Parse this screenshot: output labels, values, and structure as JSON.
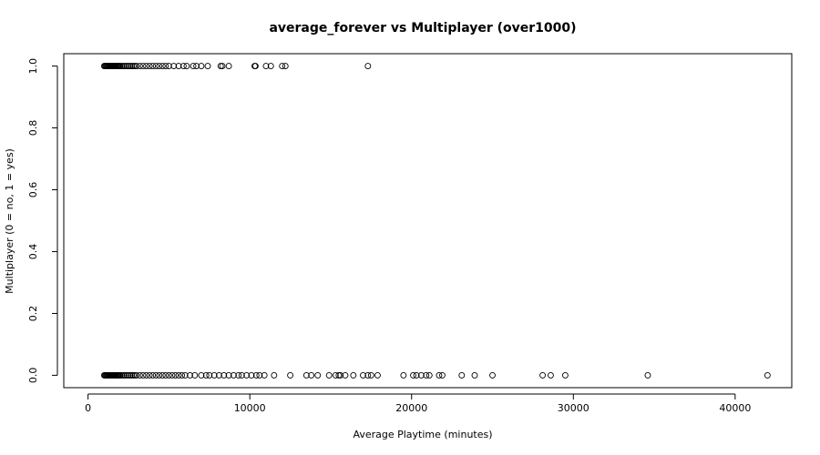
{
  "chart_data": {
    "type": "scatter",
    "title": "average_forever vs Multiplayer (over1000)",
    "xlabel": "Average Playtime (minutes)",
    "ylabel": "Multiplayer (0 = no, 1 = yes)",
    "xlim": [
      -1500,
      43500
    ],
    "ylim": [
      -0.04,
      1.04
    ],
    "x_ticks": [
      0,
      10000,
      20000,
      30000,
      40000
    ],
    "x_tick_labels": [
      "0",
      "10000",
      "20000",
      "30000",
      "40000"
    ],
    "y_ticks": [
      0.0,
      0.2,
      0.4,
      0.6,
      0.8,
      1.0
    ],
    "y_tick_labels": [
      "0.0",
      "0.2",
      "0.4",
      "0.6",
      "0.8",
      "1.0"
    ],
    "grid": false,
    "marker": "open-circle",
    "series": [
      {
        "points": [
          [
            1000,
            1
          ],
          [
            1050,
            1
          ],
          [
            1100,
            1
          ],
          [
            1150,
            1
          ],
          [
            1200,
            1
          ],
          [
            1250,
            1
          ],
          [
            1300,
            1
          ],
          [
            1350,
            1
          ],
          [
            1400,
            1
          ],
          [
            1450,
            1
          ],
          [
            1500,
            1
          ],
          [
            1550,
            1
          ],
          [
            1600,
            1
          ],
          [
            1650,
            1
          ],
          [
            1700,
            1
          ],
          [
            1750,
            1
          ],
          [
            1800,
            1
          ],
          [
            1850,
            1
          ],
          [
            1900,
            1
          ],
          [
            1950,
            1
          ],
          [
            2000,
            1
          ],
          [
            2100,
            1
          ],
          [
            2200,
            1
          ],
          [
            2300,
            1
          ],
          [
            2400,
            1
          ],
          [
            2500,
            1
          ],
          [
            2600,
            1
          ],
          [
            2700,
            1
          ],
          [
            2800,
            1
          ],
          [
            2900,
            1
          ],
          [
            3000,
            1
          ],
          [
            3200,
            1
          ],
          [
            3400,
            1
          ],
          [
            3600,
            1
          ],
          [
            3800,
            1
          ],
          [
            4000,
            1
          ],
          [
            4200,
            1
          ],
          [
            4400,
            1
          ],
          [
            4600,
            1
          ],
          [
            4800,
            1
          ],
          [
            5000,
            1
          ],
          [
            5300,
            1
          ],
          [
            5600,
            1
          ],
          [
            5900,
            1
          ],
          [
            6100,
            1
          ],
          [
            6500,
            1
          ],
          [
            6700,
            1
          ],
          [
            7000,
            1
          ],
          [
            7400,
            1
          ],
          [
            8200,
            1
          ],
          [
            8300,
            1
          ],
          [
            8700,
            1
          ],
          [
            10300,
            1
          ],
          [
            10350,
            1
          ],
          [
            11000,
            1
          ],
          [
            11300,
            1
          ],
          [
            12000,
            1
          ],
          [
            12200,
            1
          ],
          [
            17300,
            1
          ],
          [
            1000,
            0
          ],
          [
            1050,
            0
          ],
          [
            1100,
            0
          ],
          [
            1150,
            0
          ],
          [
            1200,
            0
          ],
          [
            1250,
            0
          ],
          [
            1300,
            0
          ],
          [
            1350,
            0
          ],
          [
            1400,
            0
          ],
          [
            1450,
            0
          ],
          [
            1500,
            0
          ],
          [
            1550,
            0
          ],
          [
            1600,
            0
          ],
          [
            1650,
            0
          ],
          [
            1700,
            0
          ],
          [
            1750,
            0
          ],
          [
            1800,
            0
          ],
          [
            1850,
            0
          ],
          [
            1900,
            0
          ],
          [
            1950,
            0
          ],
          [
            2000,
            0
          ],
          [
            2100,
            0
          ],
          [
            2200,
            0
          ],
          [
            2300,
            0
          ],
          [
            2400,
            0
          ],
          [
            2500,
            0
          ],
          [
            2600,
            0
          ],
          [
            2700,
            0
          ],
          [
            2800,
            0
          ],
          [
            2900,
            0
          ],
          [
            3000,
            0
          ],
          [
            3200,
            0
          ],
          [
            3400,
            0
          ],
          [
            3600,
            0
          ],
          [
            3800,
            0
          ],
          [
            4000,
            0
          ],
          [
            4200,
            0
          ],
          [
            4400,
            0
          ],
          [
            4600,
            0
          ],
          [
            4800,
            0
          ],
          [
            5000,
            0
          ],
          [
            5200,
            0
          ],
          [
            5400,
            0
          ],
          [
            5600,
            0
          ],
          [
            5800,
            0
          ],
          [
            6000,
            0
          ],
          [
            6300,
            0
          ],
          [
            6600,
            0
          ],
          [
            7000,
            0
          ],
          [
            7300,
            0
          ],
          [
            7500,
            0
          ],
          [
            7800,
            0
          ],
          [
            8100,
            0
          ],
          [
            8400,
            0
          ],
          [
            8700,
            0
          ],
          [
            9000,
            0
          ],
          [
            9300,
            0
          ],
          [
            9500,
            0
          ],
          [
            9800,
            0
          ],
          [
            10100,
            0
          ],
          [
            10400,
            0
          ],
          [
            10600,
            0
          ],
          [
            10900,
            0
          ],
          [
            11500,
            0
          ],
          [
            12500,
            0
          ],
          [
            13500,
            0
          ],
          [
            13800,
            0
          ],
          [
            14200,
            0
          ],
          [
            14900,
            0
          ],
          [
            15300,
            0
          ],
          [
            15500,
            0
          ],
          [
            15600,
            0
          ],
          [
            15900,
            0
          ],
          [
            16400,
            0
          ],
          [
            17000,
            0
          ],
          [
            17300,
            0
          ],
          [
            17500,
            0
          ],
          [
            17900,
            0
          ],
          [
            19500,
            0
          ],
          [
            20100,
            0
          ],
          [
            20300,
            0
          ],
          [
            20600,
            0
          ],
          [
            20900,
            0
          ],
          [
            21100,
            0
          ],
          [
            21700,
            0
          ],
          [
            21900,
            0
          ],
          [
            23100,
            0
          ],
          [
            23900,
            0
          ],
          [
            25000,
            0
          ],
          [
            28100,
            0
          ],
          [
            28600,
            0
          ],
          [
            29500,
            0
          ],
          [
            34600,
            0
          ],
          [
            42000,
            0
          ]
        ]
      }
    ]
  }
}
